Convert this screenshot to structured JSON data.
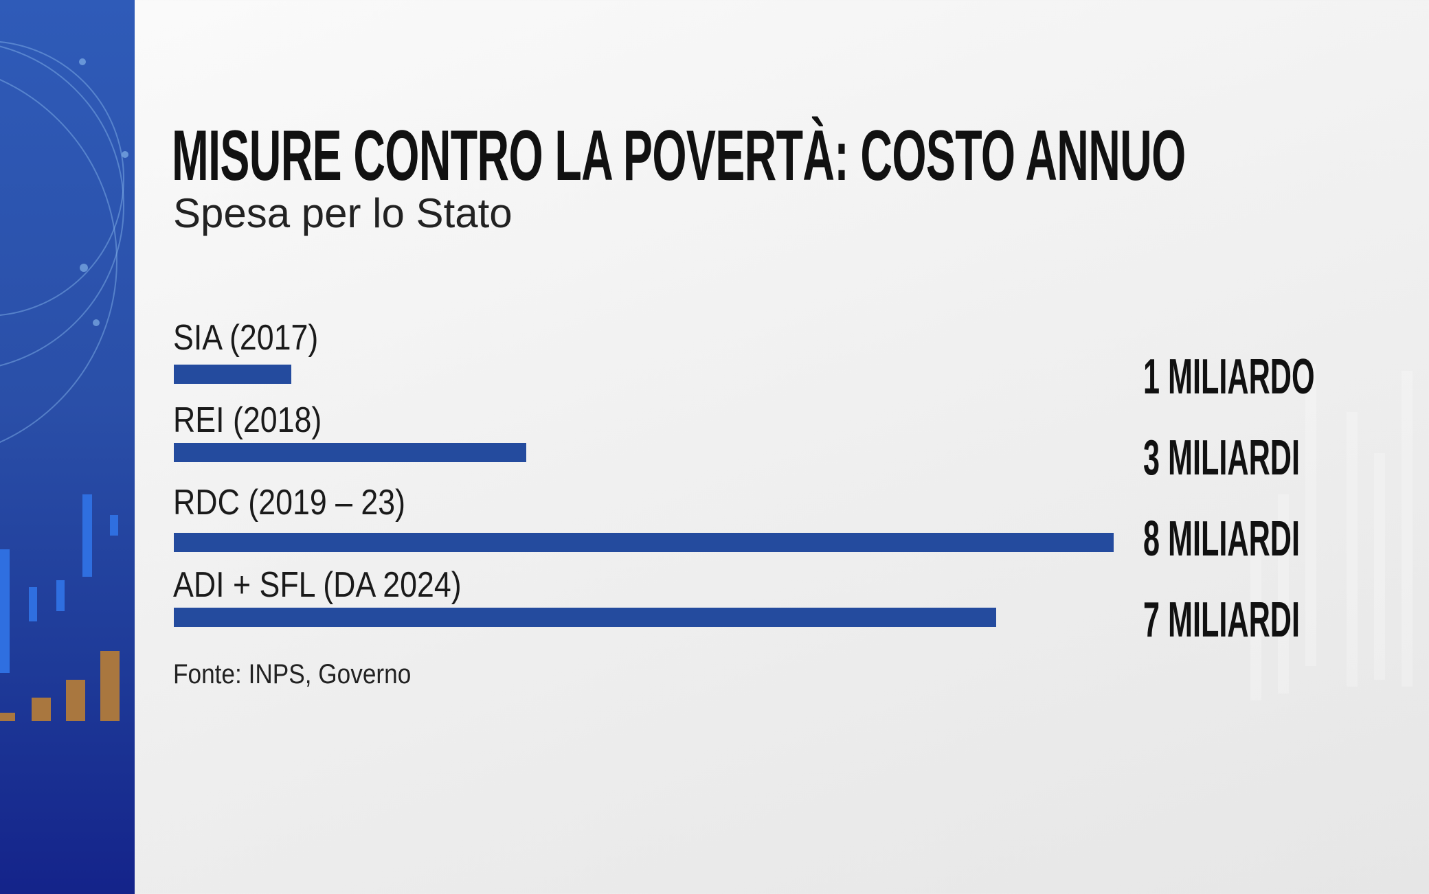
{
  "colors": {
    "bar": "#244b9e",
    "sidebar": "#2a4fa8",
    "background": "#f1f1f1"
  },
  "chart_data": {
    "type": "bar",
    "orientation": "horizontal",
    "title": "MISURE CONTRO LA POVERTÀ: COSTO ANNUO",
    "subtitle": "Spesa per lo Stato",
    "categories": [
      "SIA   (2017)",
      "REI  (2018)",
      "RDC (2019 – 23)",
      "ADI + SFL (DA 2024)"
    ],
    "values": [
      1,
      3,
      8,
      7
    ],
    "unit": "miliardi",
    "data_labels": [
      "1 MILIARDO",
      "3 MILIARDI",
      "8 MILIARDI",
      "7 MILIARDI"
    ],
    "xlim": [
      0,
      8
    ],
    "grid": false,
    "source": "Fonte: INPS, Governo"
  }
}
